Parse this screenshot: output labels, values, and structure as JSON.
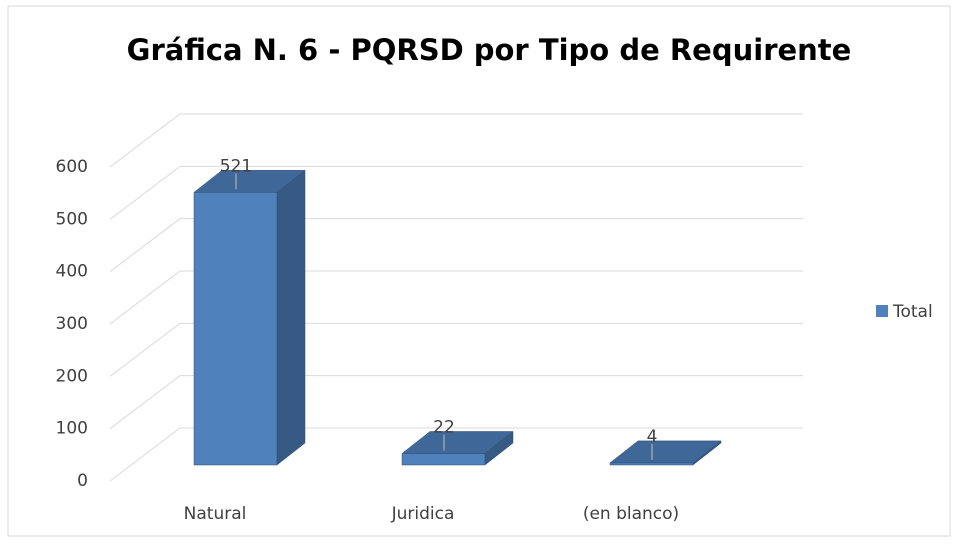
{
  "chart_data": {
    "type": "bar3d",
    "title": "Gráfica N. 6 - PQRSD por Tipo de Requirente",
    "categories": [
      "Natural",
      "Juridica",
      "(en blanco)"
    ],
    "series": [
      {
        "name": "Total",
        "color": "#4f81bd",
        "values": [
          521,
          22,
          4
        ]
      }
    ],
    "ylim": [
      0,
      600
    ],
    "yticks": [
      0,
      100,
      200,
      300,
      400,
      500,
      600
    ],
    "grid": true,
    "legend": "right"
  }
}
